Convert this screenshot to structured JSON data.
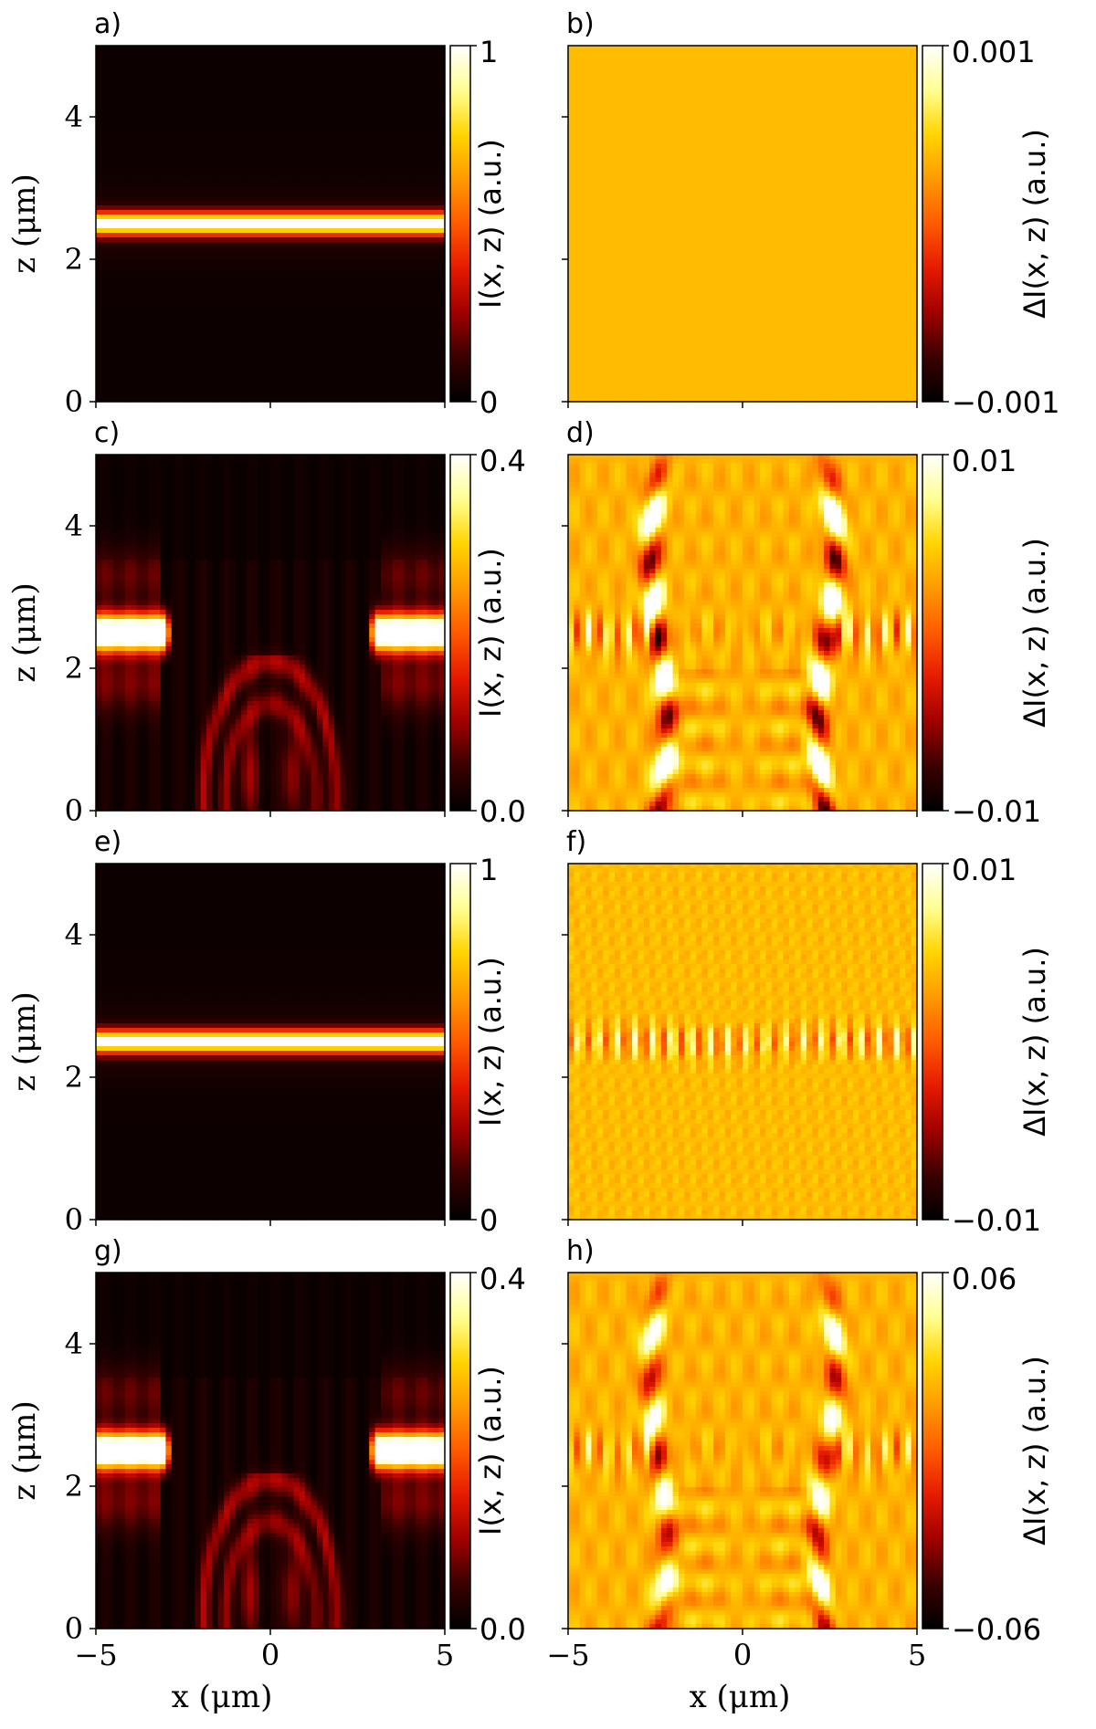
{
  "figure": {
    "x_label": "x (μm)",
    "z_label": "z (μm)"
  },
  "colors": {
    "colormap": "hot",
    "map_stops": [
      "#000000",
      "#3a0000",
      "#a00000",
      "#e61a00",
      "#ff5a00",
      "#ff9a00",
      "#ffd400",
      "#ffff90",
      "#ffffff"
    ]
  },
  "chart_data": [
    {
      "type": "heatmap",
      "label": "a)",
      "quantity": "intensity",
      "pattern": "beam",
      "x_range": [
        -5,
        5
      ],
      "z_range": [
        0,
        5
      ],
      "x_ticks": [
        "−5",
        "0",
        "5"
      ],
      "z_ticks": [
        "0",
        "2",
        "4"
      ],
      "colorbar": {
        "label": "I(x, z) (a.u.)",
        "min": 0,
        "max": 1,
        "min_label": "0",
        "max_label": "1"
      },
      "beam_center_z": 2.5
    },
    {
      "type": "heatmap",
      "label": "b)",
      "quantity": "difference",
      "pattern": "flat",
      "x_range": [
        -5,
        5
      ],
      "z_range": [
        0,
        5
      ],
      "x_ticks": [
        "−5",
        "0",
        "5"
      ],
      "z_ticks": [
        "0",
        "2",
        "4"
      ],
      "colorbar": {
        "label": "ΔI(x, z) (a.u.)",
        "min": -0.001,
        "max": 0.001,
        "min_label": "−0.001",
        "max_label": "0.001"
      }
    },
    {
      "type": "heatmap",
      "label": "c)",
      "quantity": "intensity",
      "pattern": "split",
      "x_range": [
        -5,
        5
      ],
      "z_range": [
        0,
        5
      ],
      "x_ticks": [
        "−5",
        "0",
        "5"
      ],
      "z_ticks": [
        "0",
        "2",
        "4"
      ],
      "colorbar": {
        "label": "I(x, z) (a.u.)",
        "min": 0,
        "max": 0.4,
        "min_label": "0.0",
        "max_label": "0.4"
      },
      "beam_center_z": 2.5,
      "beam_edge_x": 2.9
    },
    {
      "type": "heatmap",
      "label": "d)",
      "quantity": "difference",
      "pattern": "split-diff",
      "x_range": [
        -5,
        5
      ],
      "z_range": [
        0,
        5
      ],
      "x_ticks": [
        "−5",
        "0",
        "5"
      ],
      "z_ticks": [
        "0",
        "2",
        "4"
      ],
      "colorbar": {
        "label": "ΔI(x, z) (a.u.)",
        "min": -0.01,
        "max": 0.01,
        "min_label": "−0.01",
        "max_label": "0.01"
      },
      "beam_center_z": 2.5
    },
    {
      "type": "heatmap",
      "label": "e)",
      "quantity": "intensity",
      "pattern": "beam",
      "x_range": [
        -5,
        5
      ],
      "z_range": [
        0,
        5
      ],
      "x_ticks": [
        "−5",
        "0",
        "5"
      ],
      "z_ticks": [
        "0",
        "2",
        "4"
      ],
      "colorbar": {
        "label": "I(x, z) (a.u.)",
        "min": 0,
        "max": 1,
        "min_label": "0",
        "max_label": "1"
      },
      "beam_center_z": 2.5
    },
    {
      "type": "heatmap",
      "label": "f)",
      "quantity": "difference",
      "pattern": "fringes",
      "x_range": [
        -5,
        5
      ],
      "z_range": [
        0,
        5
      ],
      "x_ticks": [
        "−5",
        "0",
        "5"
      ],
      "z_ticks": [
        "0",
        "2",
        "4"
      ],
      "colorbar": {
        "label": "ΔI(x, z) (a.u.)",
        "min": -0.01,
        "max": 0.01,
        "min_label": "−0.01",
        "max_label": "0.01"
      },
      "beam_center_z": 2.5
    },
    {
      "type": "heatmap",
      "label": "g)",
      "quantity": "intensity",
      "pattern": "split",
      "x_range": [
        -5,
        5
      ],
      "z_range": [
        0,
        5
      ],
      "x_ticks": [
        "−5",
        "0",
        "5"
      ],
      "z_ticks": [
        "0",
        "2",
        "4"
      ],
      "colorbar": {
        "label": "I(x, z) (a.u.)",
        "min": 0,
        "max": 0.4,
        "min_label": "0.0",
        "max_label": "0.4"
      },
      "beam_center_z": 2.5,
      "beam_edge_x": 2.9
    },
    {
      "type": "heatmap",
      "label": "h)",
      "quantity": "difference",
      "pattern": "split-diff-weak",
      "x_range": [
        -5,
        5
      ],
      "z_range": [
        0,
        5
      ],
      "x_ticks": [
        "−5",
        "0",
        "5"
      ],
      "z_ticks": [
        "0",
        "2",
        "4"
      ],
      "colorbar": {
        "label": "ΔI(x, z) (a.u.)",
        "min": -0.06,
        "max": 0.06,
        "min_label": "−0.06",
        "max_label": "0.06"
      },
      "beam_center_z": 2.5
    }
  ]
}
